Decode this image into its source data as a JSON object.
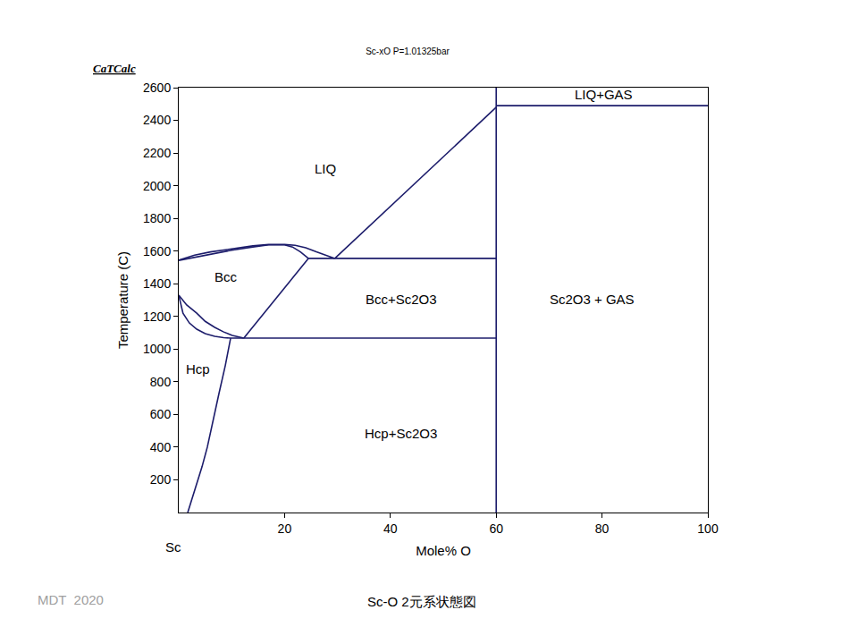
{
  "chart_data": {
    "type": "line",
    "title": "Sc-xO P=1.01325bar",
    "x_label": "Mole% O",
    "y_label": "Temperature (C)",
    "color": "#1c1c6b",
    "grid": false,
    "xlim": [
      0,
      100
    ],
    "ylim": [
      0,
      2600
    ],
    "xticks": [
      20,
      40,
      60,
      80,
      100
    ],
    "yticks": [
      200,
      400,
      600,
      800,
      1000,
      1200,
      1400,
      1600,
      1800,
      2000,
      2200,
      2400,
      2600
    ],
    "series": [
      {
        "x": [
          0,
          3,
          6,
          10,
          14,
          17,
          20,
          22,
          24,
          26,
          28,
          29.5
        ],
        "values": [
          1545,
          1575,
          1595,
          1615,
          1632,
          1640,
          1640,
          1635,
          1620,
          1595,
          1570,
          1555
        ]
      },
      {
        "x": [
          0,
          3,
          6,
          10,
          14,
          17,
          20,
          21.5,
          23,
          24.5
        ],
        "values": [
          1543,
          1562,
          1582,
          1605,
          1625,
          1638,
          1638,
          1625,
          1595,
          1555
        ]
      },
      {
        "x": [
          29.5,
          60
        ],
        "values": [
          1555,
          2480
        ]
      },
      {
        "x": [
          24.5,
          60
        ],
        "values": [
          1555,
          1555
        ]
      },
      {
        "x": [
          60,
          60
        ],
        "values": [
          0,
          2600
        ]
      },
      {
        "x": [
          60,
          100
        ],
        "values": [
          2490,
          2490
        ]
      },
      {
        "x": [
          24.5,
          12.3
        ],
        "values": [
          1555,
          1067
        ]
      },
      {
        "x": [
          9.8,
          60
        ],
        "values": [
          1067,
          1067
        ]
      },
      {
        "x": [
          0,
          1.5,
          3.4,
          5,
          6.8,
          8.5,
          10.1,
          12.3
        ],
        "values": [
          1330,
          1270,
          1220,
          1170,
          1133,
          1105,
          1084,
          1067
        ]
      },
      {
        "x": [
          0,
          0.8,
          2,
          3.4,
          5,
          6.8,
          8.5,
          9.8
        ],
        "values": [
          1330,
          1220,
          1160,
          1122,
          1095,
          1078,
          1070,
          1067
        ]
      },
      {
        "x": [
          9.8,
          8.8,
          7.6,
          6.5,
          5.4,
          4.4,
          3.4,
          1.7
        ],
        "values": [
          1067,
          900,
          728,
          560,
          400,
          280,
          180,
          0
        ]
      }
    ],
    "annotations": [
      {
        "text": "LIQ",
        "x": 27.7,
        "y": 2107
      },
      {
        "text": "LIQ+GAS",
        "x": 80.4,
        "y": 2561
      },
      {
        "text": "Bcc",
        "x": 9,
        "y": 1445
      },
      {
        "text": "Bcc+Sc2O3",
        "x": 42,
        "y": 1308
      },
      {
        "text": "Sc2O3 + GAS",
        "x": 78.2,
        "y": 1303
      },
      {
        "text": "Hcp",
        "x": 3.7,
        "y": 881
      },
      {
        "text": "Hcp+Sc2O3",
        "x": 41.9,
        "y": 487
      }
    ],
    "labels": {
      "software": "CaTCalc",
      "origin_label": "Sc",
      "credit": "MDT  2020",
      "caption": "Sc-O 2元系状態図"
    }
  }
}
